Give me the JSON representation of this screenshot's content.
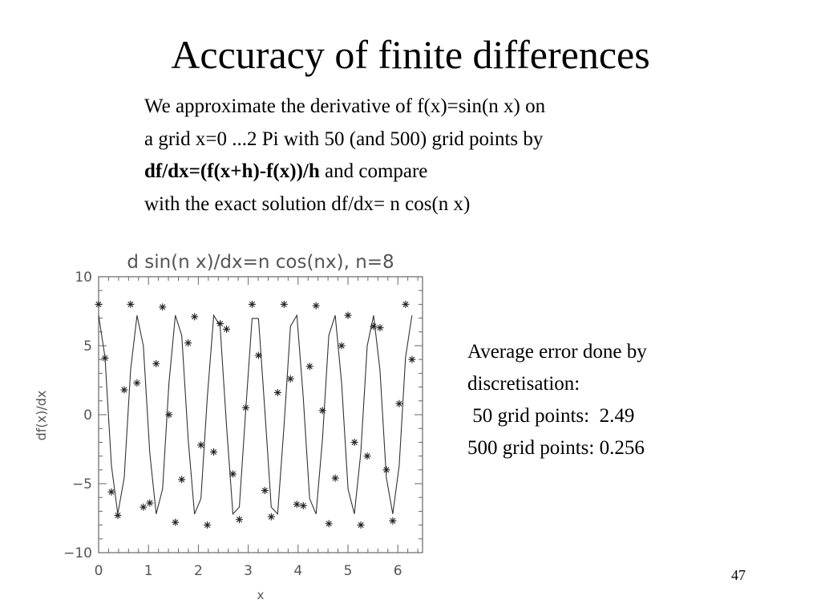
{
  "slide": {
    "title": "Accuracy of finite differences",
    "intro_lines": [
      {
        "text": "We approximate the derivative of f(x)=sin(n x) on"
      },
      {
        "text": "a grid x=0 ...2 Pi with 50 (and 500) grid points by"
      },
      {
        "bold": "df/dx=(f(x+h)-f(x))/h",
        "text": " and compare"
      },
      {
        "text": "with the exact solution df/dx= n cos(n x)"
      }
    ],
    "error_lines": [
      "Average error done by",
      "discretisation:",
      " 50 grid points:  2.49",
      "500 grid points: 0.256"
    ],
    "page_number": "47"
  },
  "chart_data": {
    "type": "line",
    "title": "d sin(n x)/dx=n cos(nx), n=8",
    "xlabel": "x",
    "ylabel": "df(x)/dx",
    "n": 8,
    "xlim": [
      0,
      6.5
    ],
    "ylim": [
      -10,
      10
    ],
    "x_ticks": [
      0,
      1,
      2,
      3,
      4,
      5,
      6
    ],
    "y_ticks": [
      10,
      5,
      0,
      -5,
      -10
    ],
    "y_tick_labels": [
      "10",
      "5",
      "0",
      "−5",
      "−10"
    ],
    "grid": false,
    "series": [
      {
        "style": "line",
        "description_points": "finite difference, 50 grid points",
        "points": 50,
        "x_range": [
          0,
          6.2832
        ]
      },
      {
        "style": "asterisk-markers",
        "x": [
          0.0,
          0.128,
          0.256,
          0.385,
          0.513,
          0.641,
          0.769,
          0.898,
          1.026,
          1.154,
          1.282,
          1.411,
          1.539,
          1.667,
          1.795,
          1.924,
          2.052,
          2.18,
          2.308,
          2.437,
          2.565,
          2.693,
          2.821,
          2.95,
          3.078,
          3.206,
          3.334,
          3.462,
          3.591,
          3.719,
          3.847,
          3.975,
          4.104,
          4.232,
          4.36,
          4.488,
          4.617,
          4.745,
          4.873,
          5.001,
          5.13,
          5.258,
          5.386,
          5.514,
          5.643,
          5.771,
          5.899,
          6.027,
          6.156,
          6.284
        ],
        "y": [
          8.0,
          4.1,
          -5.6,
          -7.3,
          1.8,
          8.0,
          2.3,
          -6.7,
          -6.4,
          3.7,
          7.8,
          0.0,
          -7.8,
          -4.7,
          5.2,
          7.1,
          -2.2,
          -8.0,
          -2.7,
          6.6,
          6.2,
          -4.3,
          -7.6,
          0.5,
          8.0,
          4.3,
          -5.5,
          -7.4,
          1.6,
          8.0,
          2.6,
          -6.5,
          -6.6,
          3.5,
          7.9,
          0.3,
          -7.9,
          -4.6,
          5.0,
          7.2,
          -2.0,
          -8.0,
          -3.0,
          6.4,
          6.3,
          -4.0,
          -7.7,
          0.8,
          8.0,
          4.0
        ]
      }
    ]
  }
}
